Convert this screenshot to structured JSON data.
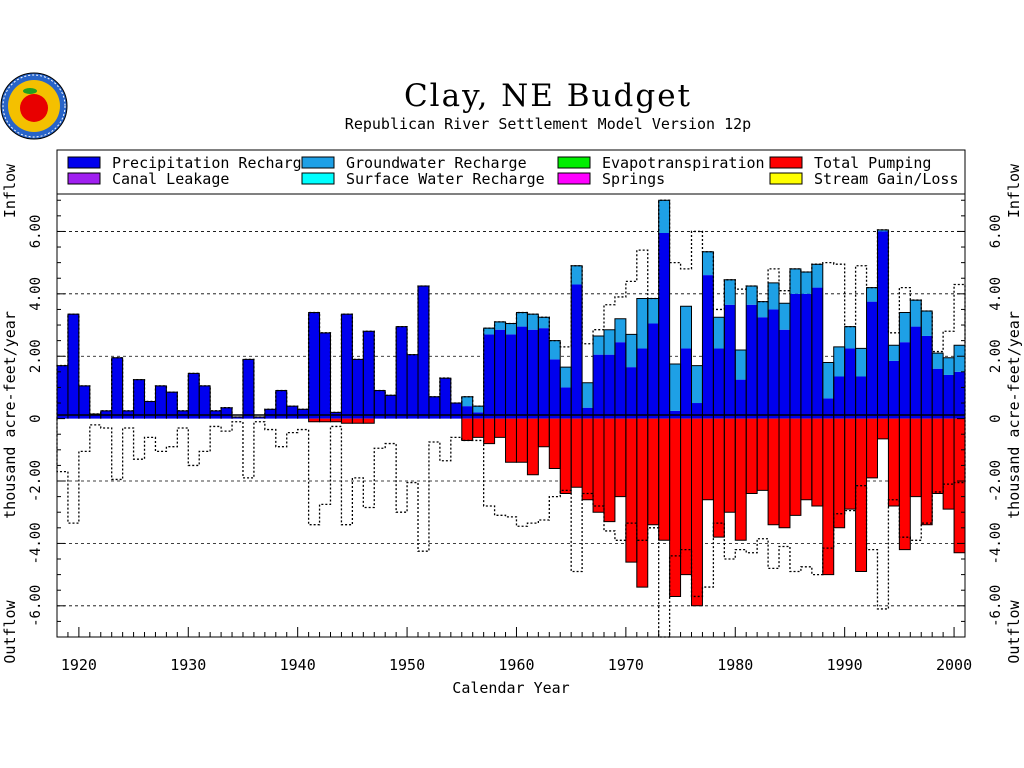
{
  "chart_data": {
    "type": "bar",
    "title": "Clay, NE Budget",
    "subtitle": "Republican River Settlement Model Version 12p",
    "xlabel": "Calendar Year",
    "ylabel_units": "thousand  acre-feet/year",
    "ylabel_top": "Inflow",
    "ylabel_bottom": "Outflow",
    "xlim": [
      1918,
      2001
    ],
    "ylim": [
      -7.0,
      7.2
    ],
    "x_ticks": [
      1920,
      1930,
      1940,
      1950,
      1960,
      1970,
      1980,
      1990,
      2000
    ],
    "x_tick_labels": [
      "1920",
      "1930",
      "1940",
      "1950",
      "1960",
      "1970",
      "1980",
      "1990",
      "2000"
    ],
    "y_ticks": [
      -6,
      -4,
      -2,
      0,
      2,
      4,
      6
    ],
    "y_tick_labels": [
      "-6.00",
      "-4.00",
      "-2.00",
      "0",
      "2.00",
      "4.00",
      "6.00"
    ],
    "grid": "dashed horizontal at major y ticks",
    "legend_position": "top",
    "legend": [
      {
        "label": "Precipitation Recharge",
        "color": "#0000ee"
      },
      {
        "label": "Groundwater Recharge",
        "color": "#1ea0e6"
      },
      {
        "label": "Evapotranspiration",
        "color": "#00ee00"
      },
      {
        "label": "Total Pumping",
        "color": "#ff0000"
      },
      {
        "label": "Canal Leakage",
        "color": "#a020f0"
      },
      {
        "label": "Surface Water Recharge",
        "color": "#00ffff"
      },
      {
        "label": "Springs",
        "color": "#ff00ff"
      },
      {
        "label": "Stream Gain/Loss",
        "color": "#ffff00"
      }
    ],
    "years": [
      1918,
      1919,
      1920,
      1921,
      1922,
      1923,
      1924,
      1925,
      1926,
      1927,
      1928,
      1929,
      1930,
      1931,
      1932,
      1933,
      1934,
      1935,
      1936,
      1937,
      1938,
      1939,
      1940,
      1941,
      1942,
      1943,
      1944,
      1945,
      1946,
      1947,
      1948,
      1949,
      1950,
      1951,
      1952,
      1953,
      1954,
      1955,
      1956,
      1957,
      1958,
      1959,
      1960,
      1961,
      1962,
      1963,
      1964,
      1965,
      1966,
      1967,
      1968,
      1969,
      1970,
      1971,
      1972,
      1973,
      1974,
      1975,
      1976,
      1977,
      1978,
      1979,
      1980,
      1981,
      1982,
      1983,
      1984,
      1985,
      1986,
      1987,
      1988,
      1989,
      1990,
      1991,
      1992,
      1993,
      1994,
      1995,
      1996,
      1997,
      1998,
      1999,
      2000
    ],
    "series": [
      {
        "name": "Precipitation Recharge",
        "color": "#0000ee",
        "values": [
          1.7,
          3.35,
          1.05,
          0.15,
          0.25,
          1.95,
          0.25,
          1.25,
          0.55,
          1.05,
          0.85,
          0.25,
          1.45,
          1.05,
          0.25,
          0.35,
          0.05,
          1.9,
          0.05,
          0.3,
          0.9,
          0.4,
          0.3,
          3.4,
          2.75,
          0.2,
          3.35,
          1.9,
          2.8,
          0.9,
          0.75,
          2.95,
          2.05,
          4.25,
          0.7,
          1.3,
          0.5,
          0.4,
          0.2,
          2.7,
          2.85,
          2.7,
          2.95,
          2.85,
          2.9,
          1.9,
          1.0,
          4.3,
          0.35,
          2.05,
          2.05,
          2.45,
          1.65,
          2.25,
          3.05,
          5.95,
          0.25,
          2.25,
          0.5,
          4.6,
          2.25,
          3.65,
          1.25,
          3.65,
          3.25,
          3.5,
          2.85,
          4.0,
          4.0,
          4.2,
          0.65,
          1.35,
          2.25,
          1.35,
          3.75,
          6.0,
          1.85,
          2.45,
          2.95,
          2.65,
          1.6,
          1.4,
          1.5
        ]
      },
      {
        "name": "Groundwater Recharge",
        "color": "#1ea0e6",
        "values": [
          0,
          0,
          0,
          0,
          0,
          0,
          0,
          0,
          0,
          0,
          0,
          0,
          0,
          0,
          0,
          0,
          0,
          0,
          0,
          0,
          0,
          0,
          0,
          0,
          0,
          0,
          0,
          0,
          0,
          0,
          0,
          0,
          0,
          0,
          0,
          0,
          0,
          0.3,
          0.2,
          0.2,
          0.25,
          0.35,
          0.45,
          0.5,
          0.35,
          0.6,
          0.65,
          0.6,
          0.8,
          0.6,
          0.8,
          0.75,
          1.05,
          1.6,
          0.8,
          1.05,
          1.5,
          1.35,
          1.2,
          0.75,
          1.0,
          0.8,
          0.95,
          0.6,
          0.5,
          0.85,
          0.85,
          0.8,
          0.7,
          0.75,
          1.15,
          0.95,
          0.7,
          0.9,
          0.45,
          0.05,
          0.5,
          0.95,
          0.85,
          0.8,
          0.5,
          0.55,
          0.85
        ]
      },
      {
        "name": "Total Pumping",
        "color": "#ff0000",
        "values": [
          0,
          0,
          0,
          0,
          0,
          0,
          0,
          0,
          0,
          0,
          0,
          0,
          0,
          0,
          0,
          0,
          0,
          0,
          0,
          0,
          0,
          0,
          0,
          -0.1,
          -0.1,
          -0.1,
          -0.15,
          -0.15,
          -0.15,
          0,
          0,
          0,
          0,
          0,
          0,
          0,
          0,
          -0.7,
          -0.6,
          -0.8,
          -0.6,
          -1.4,
          -1.4,
          -1.8,
          -0.9,
          -1.6,
          -2.4,
          -2.2,
          -2.6,
          -3.0,
          -3.3,
          -2.5,
          -4.6,
          -5.4,
          -3.4,
          -3.9,
          -5.7,
          -5.0,
          -6.0,
          -2.6,
          -3.8,
          -3.0,
          -3.9,
          -2.4,
          -2.3,
          -3.4,
          -3.5,
          -3.1,
          -2.6,
          -2.8,
          -5.0,
          -3.5,
          -2.9,
          -4.9,
          -1.9,
          -0.65,
          -2.8,
          -4.2,
          -2.5,
          -3.4,
          -2.4,
          -2.9,
          -4.3
        ]
      },
      {
        "name": "Total Outflow",
        "color": "#000000",
        "style": "dotted-outline",
        "values": [
          -1.7,
          -3.35,
          -1.05,
          -0.2,
          -0.3,
          -1.95,
          -0.3,
          -1.3,
          -0.6,
          -1.05,
          -0.9,
          -0.3,
          -1.5,
          -1.05,
          -0.25,
          -0.4,
          -0.1,
          -1.9,
          -0.1,
          -0.35,
          -0.9,
          -0.45,
          -0.35,
          -3.4,
          -2.75,
          -0.25,
          -3.4,
          -1.9,
          -2.85,
          -0.95,
          -0.8,
          -3.0,
          -2.05,
          -4.25,
          -0.75,
          -1.35,
          -0.6,
          -0.7,
          -0.7,
          -2.8,
          -3.1,
          -3.15,
          -3.45,
          -3.35,
          -3.25,
          -2.5,
          -2.3,
          -4.9,
          -2.4,
          -2.8,
          -3.6,
          -3.9,
          -3.35,
          -3.9,
          -3.5,
          -7.0,
          -4.4,
          -4.2,
          -5.7,
          -5.4,
          -3.35,
          -4.5,
          -4.2,
          -4.3,
          -3.85,
          -4.8,
          -4.1,
          -4.9,
          -4.75,
          -5.0,
          -4.15,
          -3.05,
          -2.95,
          -2.15,
          -4.2,
          -6.1,
          -2.6,
          -3.8,
          -3.9,
          -3.35,
          -2.35,
          -2.1,
          -2.05
        ]
      },
      {
        "name": "Total Inflow",
        "color": "#000000",
        "style": "dotted-outline",
        "values": [
          1.7,
          3.35,
          1.05,
          0.15,
          0.25,
          1.95,
          0.25,
          1.25,
          0.55,
          1.05,
          0.85,
          0.25,
          1.45,
          1.05,
          0.25,
          0.35,
          0.05,
          1.9,
          0.05,
          0.3,
          0.9,
          0.4,
          0.3,
          3.4,
          2.75,
          0.2,
          3.35,
          1.9,
          2.8,
          0.9,
          0.75,
          2.95,
          2.05,
          4.25,
          0.7,
          1.3,
          0.5,
          0.7,
          0.4,
          2.9,
          3.1,
          3.05,
          3.4,
          3.35,
          3.25,
          2.5,
          2.3,
          4.9,
          2.4,
          2.85,
          3.65,
          3.9,
          4.4,
          5.4,
          3.85,
          7.0,
          5.0,
          4.8,
          6.0,
          5.35,
          3.5,
          4.45,
          4.15,
          4.25,
          3.75,
          4.8,
          4.1,
          4.8,
          4.7,
          4.95,
          5.0,
          4.95,
          2.95,
          4.9,
          4.2,
          6.05,
          2.75,
          4.2,
          3.8,
          3.45,
          2.15,
          2.8,
          4.3
        ]
      }
    ]
  }
}
